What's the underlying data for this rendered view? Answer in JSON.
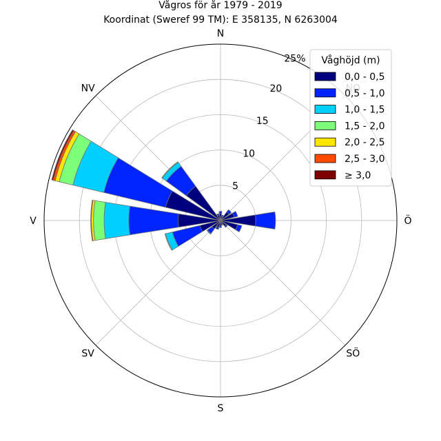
{
  "chart_data": {
    "type": "windrose",
    "title_line1": "Vågros för år 1979 - 2019",
    "title_line2": "Koordinat (Sweref 99 TM): E 358135, N 6263004",
    "directions_deg": [
      0,
      22.5,
      45,
      67.5,
      90,
      112.5,
      135,
      157.5,
      180,
      202.5,
      225,
      247.5,
      270,
      292.5,
      315,
      337.5
    ],
    "direction_labels": [
      {
        "label": "N",
        "deg": 0
      },
      {
        "label": "NO",
        "deg": 45
      },
      {
        "label": "Ö",
        "deg": 90
      },
      {
        "label": "SÖ",
        "deg": 135
      },
      {
        "label": "S",
        "deg": 180
      },
      {
        "label": "SV",
        "deg": 225
      },
      {
        "label": "V",
        "deg": 270
      },
      {
        "label": "NV",
        "deg": 315
      }
    ],
    "radial_ticks": [
      5,
      10,
      15,
      20
    ],
    "radial_max_label": "25%",
    "rmax": 25,
    "legend_title": "Våghöjd (m)",
    "legend_placement": "top-right",
    "series": [
      {
        "name": "0,0 - 0,5",
        "color": "#00007f",
        "values": [
          1.0,
          0.6,
          1.5,
          2.0,
          5.0,
          2.5,
          1.0,
          0.6,
          0.8,
          1.0,
          1.5,
          3.0,
          6.0,
          8.0,
          6.0,
          0.8
        ]
      },
      {
        "name": "0,5 - 1,0",
        "color": "#0024ff",
        "values": [
          0.3,
          0.2,
          0.4,
          0.5,
          2.8,
          0.6,
          0.2,
          0.1,
          0.2,
          0.3,
          0.8,
          4.0,
          7.0,
          9.0,
          3.5,
          0.2
        ]
      },
      {
        "name": "1,0 - 1,5",
        "color": "#00d0ff",
        "values": [
          0,
          0,
          0,
          0,
          0,
          0,
          0,
          0,
          0,
          0,
          0.1,
          1.0,
          3.5,
          4.5,
          0.7,
          0
        ]
      },
      {
        "name": "1,5 - 2,0",
        "color": "#7cff79",
        "values": [
          0,
          0,
          0,
          0,
          0,
          0,
          0,
          0,
          0,
          0,
          0,
          0.1,
          1.5,
          2.0,
          0.1,
          0
        ]
      },
      {
        "name": "2,0 - 2,5",
        "color": "#ffe600",
        "values": [
          0,
          0,
          0,
          0,
          0,
          0,
          0,
          0,
          0,
          0,
          0,
          0,
          0.3,
          0.6,
          0,
          0
        ]
      },
      {
        "name": "2,5 - 3,0",
        "color": "#ff4a00",
        "values": [
          0,
          0,
          0,
          0,
          0,
          0,
          0,
          0,
          0,
          0,
          0,
          0,
          0.1,
          0.3,
          0,
          0
        ]
      },
      {
        "name": "≥ 3,0",
        "color": "#7f0000",
        "values": [
          0,
          0,
          0,
          0,
          0,
          0,
          0,
          0,
          0,
          0,
          0,
          0,
          0,
          0.2,
          0,
          0
        ]
      }
    ]
  }
}
